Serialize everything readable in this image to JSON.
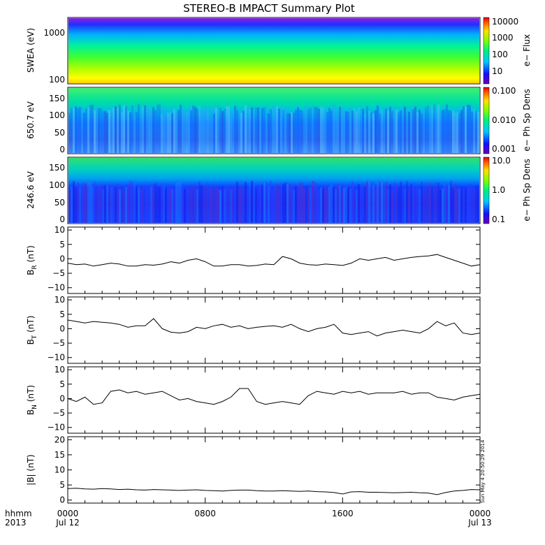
{
  "title": "STEREO-B IMPACT Summary Plot",
  "x_axis": {
    "row1_label": "hhmm",
    "row2_label": "2013",
    "ticks": [
      {
        "hours": 0,
        "line1": "0000",
        "line2": "Jul 12"
      },
      {
        "hours": 8,
        "line1": "0800",
        "line2": ""
      },
      {
        "hours": 16,
        "line1": "1600",
        "line2": ""
      },
      {
        "hours": 24,
        "line1": "0000",
        "line2": "Jul 13"
      }
    ],
    "range_hours": [
      0,
      24
    ]
  },
  "spectrograms": [
    {
      "ylabel": "SWEA (eV)",
      "yticks": [
        "1000",
        "100"
      ],
      "colorbar_label": "e− Flux",
      "colorbar_ticks": [
        "10000",
        "1000",
        "100",
        "10"
      ],
      "yscale": "log"
    },
    {
      "ylabel": "650.7 eV",
      "yticks": [
        "150",
        "100",
        "50",
        "0"
      ],
      "colorbar_label": "e− Ph Sp Dens",
      "colorbar_ticks": [
        "0.100",
        "0.010",
        "0.001"
      ],
      "yscale": "linear"
    },
    {
      "ylabel": "246.6 eV",
      "yticks": [
        "150",
        "100",
        "50",
        "0"
      ],
      "colorbar_label": "e− Ph Sp Dens",
      "colorbar_ticks": [
        "10.0",
        "1.0",
        "0.1"
      ],
      "yscale": "linear"
    }
  ],
  "footer_stamp": "Sun May 4 20:50:29 2014",
  "chart_data": [
    {
      "type": "line",
      "ylabel_main": "B",
      "ylabel_sub": "R",
      "ylabel_unit": " (nT)",
      "ylim": [
        -12,
        11
      ],
      "yticks": [
        "10",
        "5",
        "0",
        "−5",
        "−10"
      ],
      "x": [
        0,
        0.5,
        1,
        1.5,
        2,
        2.5,
        3,
        3.5,
        4,
        4.5,
        5,
        5.5,
        6,
        6.5,
        7,
        7.5,
        8,
        8.5,
        9,
        9.5,
        10,
        10.5,
        11,
        11.5,
        12,
        12.5,
        13,
        13.5,
        14,
        14.5,
        15,
        15.5,
        16,
        16.5,
        17,
        17.5,
        18,
        18.5,
        19,
        19.5,
        20,
        20.5,
        21,
        21.5,
        22,
        22.5,
        23,
        23.5,
        24
      ],
      "values": [
        -1.5,
        -2,
        -1.8,
        -2.5,
        -2,
        -1.5,
        -1.8,
        -2.5,
        -2.5,
        -2,
        -2.2,
        -1.8,
        -1,
        -1.5,
        -0.5,
        0,
        -1,
        -2.5,
        -2.5,
        -2,
        -2,
        -2.5,
        -2.3,
        -1.8,
        -2,
        0.8,
        0,
        -1.5,
        -2,
        -2.2,
        -1.8,
        -2,
        -2.3,
        -1.5,
        0,
        -0.5,
        0,
        0.5,
        -0.5,
        0,
        0.5,
        0.8,
        1,
        1.5,
        0.5,
        -0.5,
        -1.5,
        -2.5,
        -2
      ]
    },
    {
      "type": "line",
      "ylabel_main": "B",
      "ylabel_sub": "T",
      "ylabel_unit": " (nT)",
      "ylim": [
        -12,
        11
      ],
      "yticks": [
        "10",
        "5",
        "0",
        "−5",
        "−10"
      ],
      "x": [
        0,
        0.5,
        1,
        1.5,
        2,
        2.5,
        3,
        3.5,
        4,
        4.5,
        5,
        5.5,
        6,
        6.5,
        7,
        7.5,
        8,
        8.5,
        9,
        9.5,
        10,
        10.5,
        11,
        11.5,
        12,
        12.5,
        13,
        13.5,
        14,
        14.5,
        15,
        15.5,
        16,
        16.5,
        17,
        17.5,
        18,
        18.5,
        19,
        19.5,
        20,
        20.5,
        21,
        21.5,
        22,
        22.5,
        23,
        23.5,
        24
      ],
      "values": [
        3,
        2.5,
        2,
        2.5,
        2.2,
        2,
        1.5,
        0.5,
        1,
        1,
        3.5,
        0,
        -1.2,
        -1.5,
        -1,
        0.5,
        0,
        1,
        1.5,
        0.5,
        1,
        0,
        0.5,
        0.8,
        1,
        0.5,
        1.5,
        0,
        -1,
        0,
        0.5,
        1.5,
        -1.5,
        -2,
        -1.5,
        -1,
        -2.5,
        -1.5,
        -1,
        -0.5,
        -1,
        -1.5,
        0,
        2.5,
        1,
        2,
        -1.5,
        -2,
        -1.5
      ]
    },
    {
      "type": "line",
      "ylabel_main": "B",
      "ylabel_sub": "N",
      "ylabel_unit": " (nT)",
      "ylim": [
        -12,
        11
      ],
      "yticks": [
        "10",
        "5",
        "0",
        "−5",
        "−10"
      ],
      "x": [
        0,
        0.5,
        1,
        1.5,
        2,
        2.5,
        3,
        3.5,
        4,
        4.5,
        5,
        5.5,
        6,
        6.5,
        7,
        7.5,
        8,
        8.5,
        9,
        9.5,
        10,
        10.5,
        11,
        11.5,
        12,
        12.5,
        13,
        13.5,
        14,
        14.5,
        15,
        15.5,
        16,
        16.5,
        17,
        17.5,
        18,
        18.5,
        19,
        19.5,
        20,
        20.5,
        21,
        21.5,
        22,
        22.5,
        23,
        23.5,
        24
      ],
      "values": [
        0,
        -1,
        0.5,
        -2,
        -1.5,
        2.5,
        3,
        2,
        2.5,
        1.5,
        2,
        2.5,
        1,
        -0.5,
        0,
        -1,
        -1.5,
        -2,
        -1,
        0.5,
        3.5,
        3.5,
        -1,
        -2,
        -1.5,
        -1,
        -1.5,
        -2,
        1,
        2.5,
        2,
        1.5,
        2.5,
        2,
        2.5,
        1.5,
        2,
        2,
        2,
        2.5,
        1.5,
        2,
        2,
        0.5,
        0,
        -0.5,
        0.5,
        1,
        1.5
      ]
    },
    {
      "type": "line",
      "ylabel_main": "|B|",
      "ylabel_sub": "",
      "ylabel_unit": " (nT)",
      "ylim": [
        -1,
        21
      ],
      "yticks": [
        "20",
        "15",
        "10",
        "5",
        "0"
      ],
      "x": [
        0,
        0.5,
        1,
        1.5,
        2,
        2.5,
        3,
        3.5,
        4,
        4.5,
        5,
        5.5,
        6,
        6.5,
        7,
        7.5,
        8,
        8.5,
        9,
        9.5,
        10,
        10.5,
        11,
        11.5,
        12,
        12.5,
        13,
        13.5,
        14,
        14.5,
        15,
        15.5,
        16,
        16.5,
        17,
        17.5,
        18,
        18.5,
        19,
        19.5,
        20,
        20.5,
        21,
        21.5,
        22,
        22.5,
        23,
        23.5,
        24
      ],
      "values": [
        3.8,
        3.9,
        3.7,
        3.6,
        3.8,
        3.7,
        3.5,
        3.6,
        3.4,
        3.3,
        3.5,
        3.4,
        3.3,
        3.2,
        3.3,
        3.4,
        3.2,
        3.1,
        3.0,
        3.2,
        3.3,
        3.3,
        3.1,
        3.0,
        3.0,
        3.1,
        3.0,
        2.9,
        3.0,
        2.8,
        2.7,
        2.5,
        2.0,
        2.7,
        2.8,
        2.6,
        2.6,
        2.5,
        2.4,
        2.5,
        2.6,
        2.4,
        2.3,
        1.8,
        2.5,
        3.0,
        3.2,
        3.5,
        3.4
      ]
    }
  ]
}
